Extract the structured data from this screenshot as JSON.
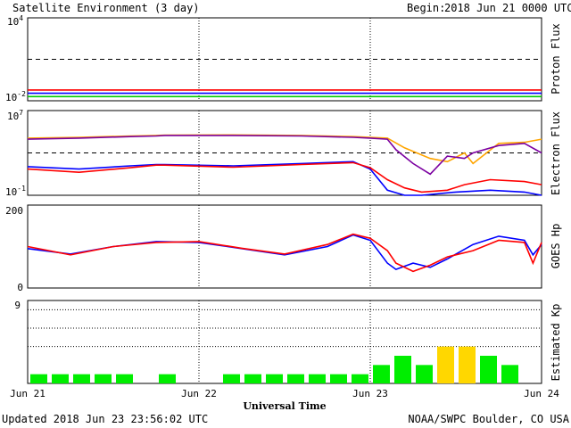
{
  "header": {
    "title": "Satellite Environment (3 day)",
    "begin_label": "Begin:",
    "begin_value": "2018 Jun 21 0000 UTC"
  },
  "footer": {
    "updated": "Updated 2018 Jun 23 23:56:02 UTC",
    "credit": "NOAA/SWPC Boulder, CO USA"
  },
  "chart_data": [
    {
      "type": "line",
      "panel": "proton",
      "ylabel": "Proton Flux",
      "yscale": "log",
      "ylim": [
        0.01,
        10000
      ],
      "ytick_labels": [
        {
          "base": "10",
          "exp": "4",
          "value": 10000
        },
        {
          "base": "10",
          "exp": "-2",
          "value": 0.01
        }
      ],
      "threshold": 10,
      "series": [
        {
          "color": "#ff0000",
          "x": [
            0,
            0.5,
            1,
            1.5,
            2,
            2.5,
            3
          ],
          "values": [
            0.06,
            0.06,
            0.06,
            0.06,
            0.06,
            0.06,
            0.06
          ]
        },
        {
          "color": "#0000ff",
          "x": [
            0,
            0.5,
            1,
            1.5,
            2,
            2.5,
            3
          ],
          "values": [
            0.035,
            0.035,
            0.035,
            0.035,
            0.035,
            0.035,
            0.035
          ]
        },
        {
          "color": "#00cc00",
          "x": [
            0,
            0.5,
            1,
            1.5,
            2,
            2.5,
            3
          ],
          "values": [
            0.02,
            0.02,
            0.02,
            0.02,
            0.02,
            0.02,
            0.02
          ]
        }
      ]
    },
    {
      "type": "line",
      "panel": "electron",
      "ylabel": "Electron Flux",
      "yscale": "log",
      "ylim": [
        0.1,
        10000000
      ],
      "ytick_labels": [
        {
          "base": "10",
          "exp": "7",
          "value": 10000000
        },
        {
          "base": "10",
          "exp": "-1",
          "value": 0.1
        }
      ],
      "threshold": 1000,
      "series": [
        {
          "color": "#ffa500",
          "x": [
            0,
            0.3,
            0.6,
            0.75,
            0.8,
            1.2,
            1.6,
            1.9,
            2.0,
            2.1,
            2.2,
            2.35,
            2.45,
            2.55,
            2.6,
            2.75,
            2.9,
            3.0
          ],
          "values": [
            25000,
            30000,
            40000,
            45000,
            48000,
            50000,
            45000,
            35000,
            30000,
            25000,
            3000,
            300,
            150,
            1000,
            100,
            8000,
            10000,
            20000
          ]
        },
        {
          "color": "#7b00a0",
          "x": [
            0,
            0.3,
            0.6,
            0.75,
            0.8,
            1.2,
            1.6,
            1.9,
            2.0,
            2.1,
            2.15,
            2.25,
            2.35,
            2.45,
            2.55,
            2.6,
            2.75,
            2.9,
            3.0
          ],
          "values": [
            20000,
            25000,
            35000,
            40000,
            45000,
            45000,
            40000,
            30000,
            25000,
            20000,
            2000,
            100,
            10,
            500,
            300,
            1000,
            5000,
            8000,
            1000
          ]
        },
        {
          "color": "#0000ff",
          "x": [
            0,
            0.3,
            0.6,
            0.75,
            0.8,
            1.2,
            1.6,
            1.9,
            2.0,
            2.1,
            2.2,
            2.3,
            2.5,
            2.7,
            2.9,
            3.0
          ],
          "values": [
            50,
            30,
            60,
            80,
            80,
            60,
            100,
            150,
            30,
            0.3,
            0.1,
            0.1,
            0.2,
            0.3,
            0.2,
            0.1
          ]
        },
        {
          "color": "#ff0000",
          "x": [
            0,
            0.3,
            0.6,
            0.75,
            0.8,
            1.2,
            1.6,
            1.9,
            2.0,
            2.1,
            2.2,
            2.3,
            2.45,
            2.55,
            2.7,
            2.9,
            3.0
          ],
          "values": [
            30,
            15,
            40,
            70,
            70,
            45,
            80,
            120,
            40,
            3,
            0.5,
            0.2,
            0.3,
            1,
            3,
            2,
            1
          ]
        }
      ]
    },
    {
      "type": "line",
      "panel": "hp",
      "ylabel": "GOES Hp",
      "ylim": [
        0,
        200
      ],
      "ytick_labels": [
        {
          "text": "200",
          "value": 200
        },
        {
          "text": "0",
          "value": 0
        }
      ],
      "series": [
        {
          "color": "#0000ff",
          "x": [
            0,
            0.25,
            0.5,
            0.75,
            1.0,
            1.25,
            1.5,
            1.75,
            1.9,
            2.0,
            2.1,
            2.15,
            2.25,
            2.35,
            2.45,
            2.6,
            2.75,
            2.9,
            2.95,
            3.0
          ],
          "values": [
            95,
            82,
            100,
            112,
            110,
            95,
            80,
            100,
            128,
            115,
            60,
            45,
            60,
            50,
            70,
            105,
            125,
            115,
            80,
            105
          ]
        },
        {
          "color": "#ff0000",
          "x": [
            0,
            0.25,
            0.5,
            0.75,
            1.0,
            1.25,
            1.5,
            1.75,
            1.9,
            2.0,
            2.1,
            2.15,
            2.25,
            2.35,
            2.45,
            2.6,
            2.75,
            2.9,
            2.95,
            3.0
          ],
          "values": [
            100,
            80,
            100,
            110,
            112,
            96,
            82,
            105,
            130,
            120,
            90,
            60,
            40,
            55,
            75,
            90,
            115,
            110,
            60,
            110
          ]
        }
      ]
    },
    {
      "type": "bar",
      "panel": "kp",
      "ylabel": "Estimated Kp",
      "ylim": [
        0,
        9
      ],
      "ytick_labels": [
        {
          "text": "9",
          "value": 9
        }
      ],
      "dotted_levels": [
        4,
        6,
        8
      ],
      "bar_width_hours": 3,
      "values": [
        1,
        1,
        1,
        1,
        1,
        0,
        1,
        0,
        0,
        1,
        1,
        1,
        1,
        1,
        1,
        1,
        2,
        3,
        2,
        4,
        4,
        3,
        2,
        0
      ],
      "colors": [
        "#00ee00",
        "#00ee00",
        "#00ee00",
        "#00ee00",
        "#00ee00",
        "#00ee00",
        "#00ee00",
        "#00ee00",
        "#00ee00",
        "#00ee00",
        "#00ee00",
        "#00ee00",
        "#00ee00",
        "#00ee00",
        "#00ee00",
        "#00ee00",
        "#00ee00",
        "#00ee00",
        "#00ee00",
        "#ffd700",
        "#ffd700",
        "#00ee00",
        "#00ee00",
        "#00ee00"
      ]
    }
  ],
  "xaxis": {
    "title": "Universal Time",
    "tick_labels": [
      "Jun 21",
      "Jun 22",
      "Jun 23",
      "Jun 24"
    ],
    "tick_days": [
      0,
      1,
      2,
      3
    ]
  }
}
